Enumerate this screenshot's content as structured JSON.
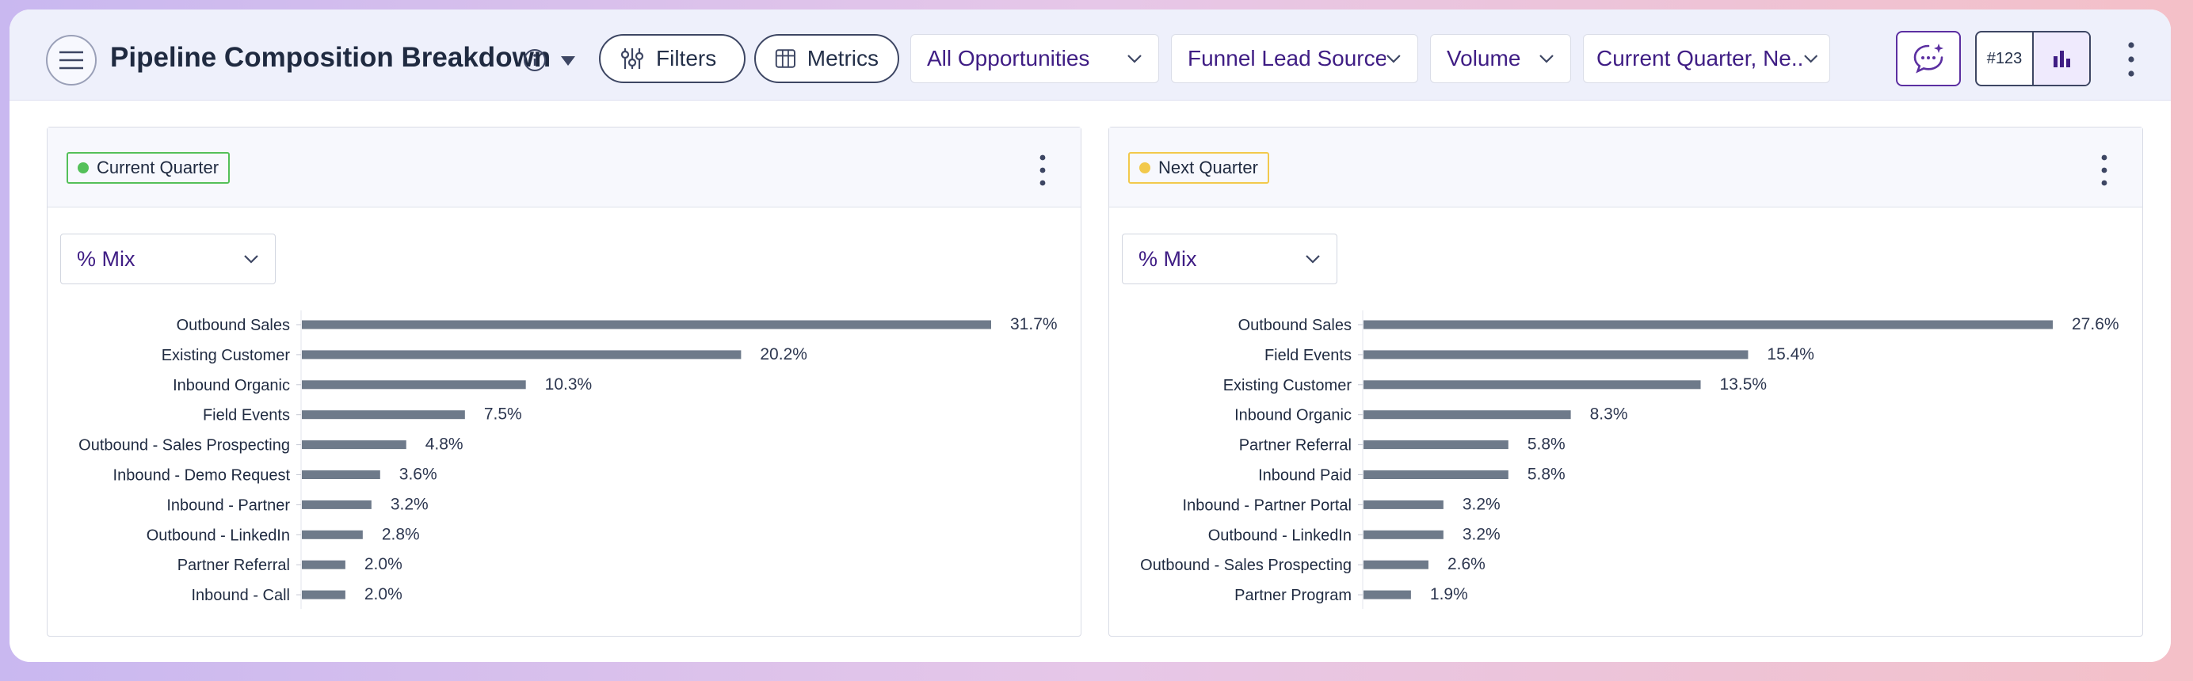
{
  "header": {
    "title": "Pipeline Composition Breakdown",
    "filters_label": "Filters",
    "metrics_label": "Metrics",
    "opportunity_select": "All Opportunities",
    "source_select": "Funnel Lead Source",
    "measure_select": "Volume",
    "period_select": "Current Quarter, Ne...",
    "number_format_label": "#123"
  },
  "colors": {
    "accent": "#3f1d84",
    "bar": "#6e7a8a",
    "current_dot": "#54c059",
    "current_border": "#54c059",
    "next_dot": "#f2c94c",
    "next_border": "#f2c94c"
  },
  "panels": [
    {
      "tag": "Current Quarter",
      "mix_select": "% Mix",
      "chart_data": {
        "type": "bar",
        "orientation": "horizontal",
        "categories": [
          "Outbound Sales",
          "Existing Customer",
          "Inbound Organic",
          "Field Events",
          "Outbound - Sales Prospecting",
          "Inbound - Demo Request",
          "Inbound - Partner",
          "Outbound - LinkedIn",
          "Partner Referral",
          "Inbound - Call"
        ],
        "values": [
          31.7,
          20.2,
          10.3,
          7.5,
          4.8,
          3.6,
          3.2,
          2.8,
          2.0,
          2.0
        ],
        "labels": [
          "31.7%",
          "20.2%",
          "10.3%",
          "7.5%",
          "4.8%",
          "3.6%",
          "3.2%",
          "2.8%",
          "2.0%",
          "2.0%"
        ],
        "xlim": [
          0,
          31.7
        ]
      }
    },
    {
      "tag": "Next Quarter",
      "mix_select": "% Mix",
      "chart_data": {
        "type": "bar",
        "orientation": "horizontal",
        "categories": [
          "Outbound Sales",
          "Field Events",
          "Existing Customer",
          "Inbound Organic",
          "Partner Referral",
          "Inbound Paid",
          "Inbound - Partner Portal",
          "Outbound - LinkedIn",
          "Outbound - Sales Prospecting",
          "Partner Program"
        ],
        "values": [
          27.6,
          15.4,
          13.5,
          8.3,
          5.8,
          5.8,
          3.2,
          3.2,
          2.6,
          1.9
        ],
        "labels": [
          "27.6%",
          "15.4%",
          "13.5%",
          "8.3%",
          "5.8%",
          "5.8%",
          "3.2%",
          "3.2%",
          "2.6%",
          "1.9%"
        ],
        "xlim": [
          0,
          27.6
        ]
      }
    }
  ]
}
